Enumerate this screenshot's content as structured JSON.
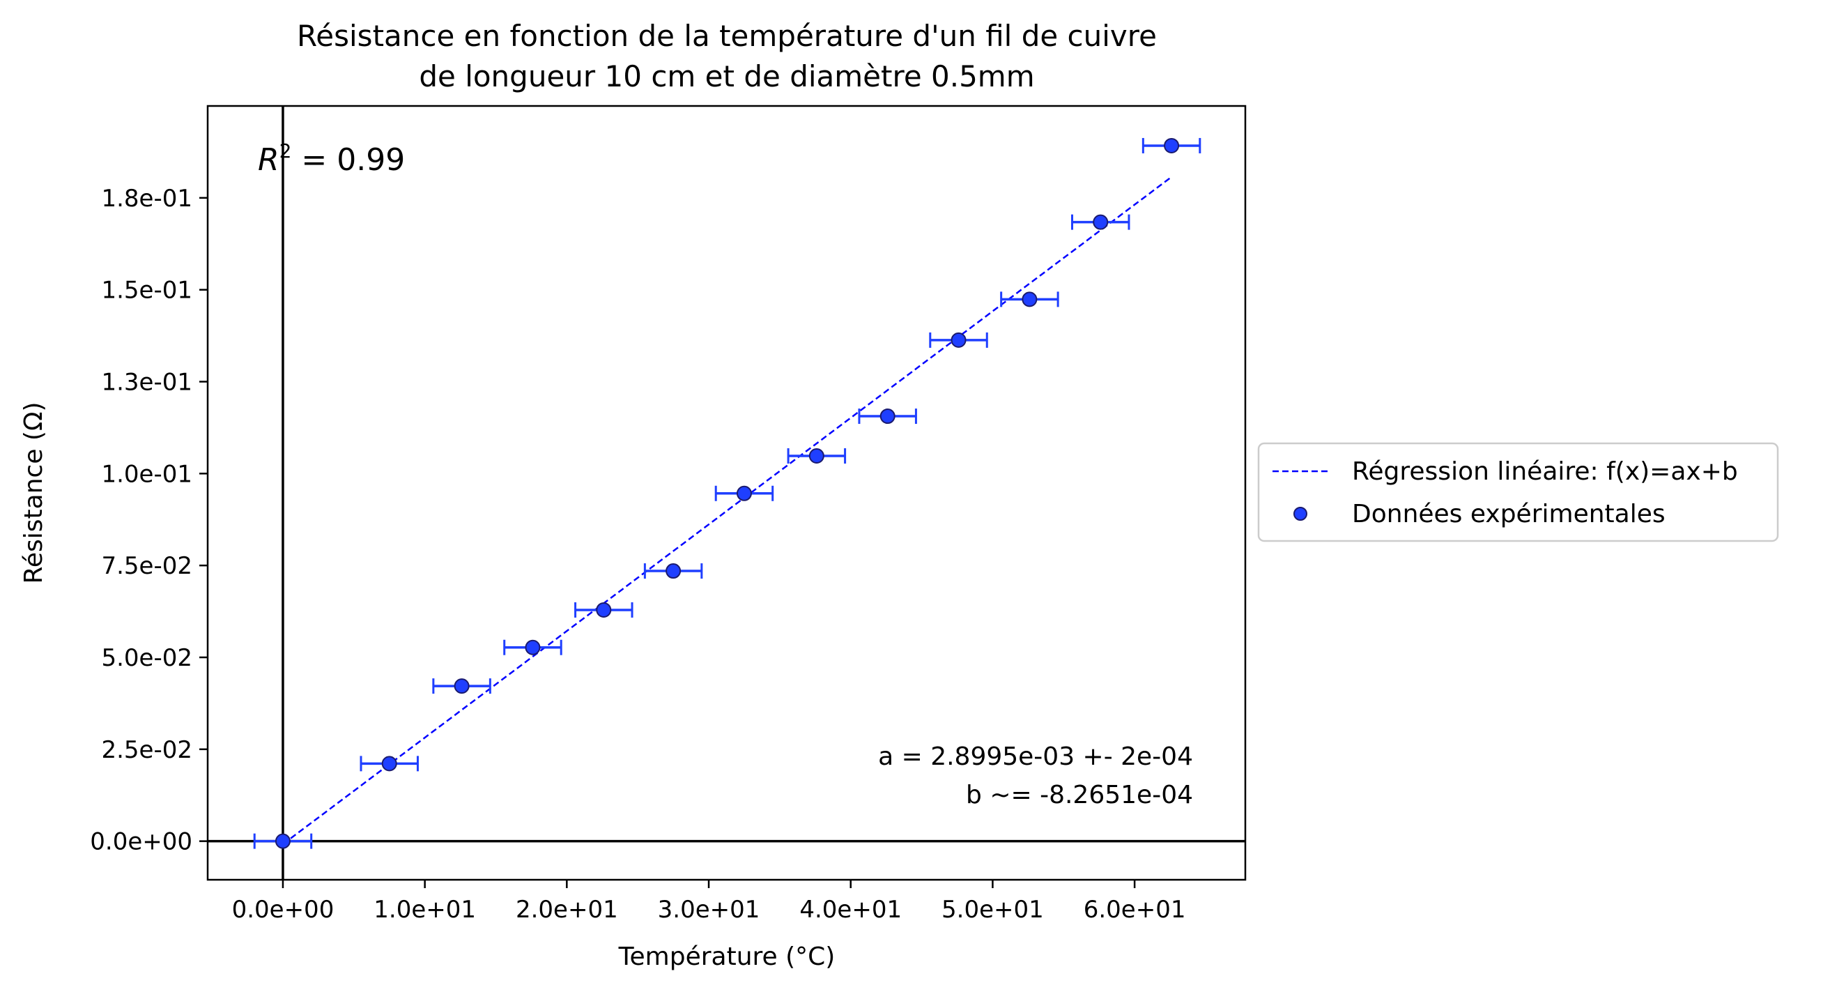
{
  "chart_data": {
    "type": "scatter",
    "title_lines": [
      "Résistance en fonction de la température d'un fil de cuivre",
      "de longueur 10 cm et de diamètre 0.5mm"
    ],
    "xlabel": "Température (°C)",
    "ylabel": "Résistance (Ω)",
    "xlim": [
      -5.3,
      67.8
    ],
    "ylim": [
      -0.0105,
      0.2
    ],
    "xticks": [
      0,
      10,
      20,
      30,
      40,
      50,
      60
    ],
    "xtick_labels": [
      "0.0e+00",
      "1.0e+01",
      "2.0e+01",
      "3.0e+01",
      "4.0e+01",
      "5.0e+01",
      "6.0e+01"
    ],
    "yticks": [
      0,
      0.025,
      0.05,
      0.075,
      0.1,
      0.125,
      0.15,
      0.175
    ],
    "ytick_labels": [
      "0.0e+00",
      "2.5e-02",
      "5.0e-02",
      "7.5e-02",
      "1.0e-01",
      "1.3e-01",
      "1.5e-01",
      "1.8e-01"
    ],
    "series": [
      {
        "name": "Données expérimentales",
        "marker": "circle",
        "color": "#1f3fff",
        "edge_color": "#1a1a6e",
        "x": [
          0,
          7.5,
          12.6,
          17.6,
          22.6,
          27.5,
          32.5,
          37.6,
          42.6,
          47.6,
          52.6,
          57.6,
          62.6
        ],
        "y": [
          0.0,
          0.0211,
          0.0422,
          0.0527,
          0.0629,
          0.0735,
          0.0946,
          0.1048,
          0.1156,
          0.1363,
          0.1474,
          0.1684,
          0.1892
        ],
        "xerr": 2.0
      },
      {
        "name": "Régression linéaire: f(x)=ax+b",
        "line_style": "dashed",
        "color": "#0000ff",
        "x": [
          0,
          62.6
        ],
        "y": [
          -0.00082651,
          0.18069
        ]
      }
    ],
    "reference_lines": {
      "x0": true,
      "y0": true,
      "color": "#000000"
    },
    "annotations": {
      "r2": "0.99",
      "fit_a": "a = 2.8995e-03 +- 2e-04",
      "fit_b": "b ~= -8.2651e-04"
    },
    "legend": {
      "placement": "outside-right",
      "entries": [
        "Régression linéaire: f(x)=ax+b",
        "Données expérimentales"
      ]
    },
    "grid": false
  }
}
